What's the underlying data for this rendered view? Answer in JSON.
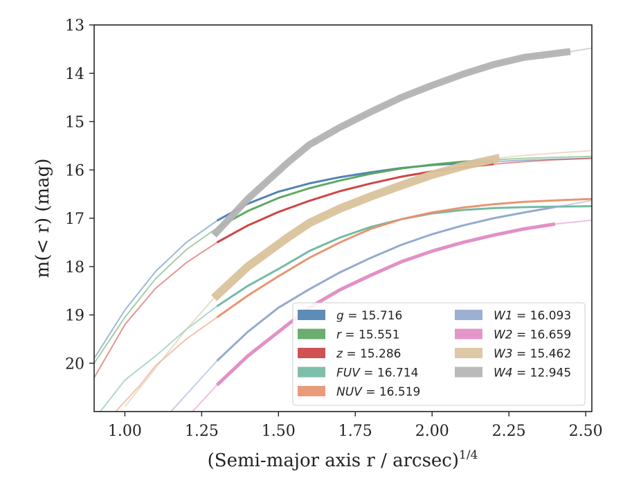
{
  "chart_data": {
    "type": "line",
    "xlabel": "(Semi-major axis r / arcsec)",
    "xlabel_exponent": "1/4",
    "ylabel": "m(< r) (mag)",
    "xlim": [
      0.9,
      2.52
    ],
    "ylim": [
      21.0,
      13.0
    ],
    "y_inverted": true,
    "grid": false,
    "legend_placement": "lower-right",
    "legend_columns": 2,
    "x_ticks": [
      "1.00",
      "1.25",
      "1.50",
      "1.75",
      "2.00",
      "2.25",
      "2.50"
    ],
    "y_ticks": [
      "13",
      "14",
      "15",
      "16",
      "17",
      "18",
      "19",
      "20"
    ],
    "series": [
      {
        "name": "g",
        "value": "15.716",
        "color": "#4c7fb0",
        "x": [
          0.9,
          1.0,
          1.1,
          1.2,
          1.3,
          1.4,
          1.5,
          1.6,
          1.7,
          1.8,
          1.9,
          2.0,
          2.1,
          2.2,
          2.3,
          2.4,
          2.52
        ],
        "y": [
          19.9,
          18.9,
          18.1,
          17.5,
          17.05,
          16.7,
          16.45,
          16.28,
          16.15,
          16.05,
          15.96,
          15.9,
          15.86,
          15.83,
          15.8,
          15.78,
          15.76
        ],
        "bold_range": [
          1.29,
          2.28
        ]
      },
      {
        "name": "r",
        "value": "15.551",
        "color": "#5ba55e",
        "x": [
          0.9,
          1.0,
          1.1,
          1.2,
          1.3,
          1.4,
          1.5,
          1.6,
          1.7,
          1.8,
          1.9,
          2.0,
          2.1,
          2.2,
          2.3,
          2.4,
          2.52
        ],
        "y": [
          20.0,
          19.05,
          18.25,
          17.65,
          17.2,
          16.85,
          16.58,
          16.38,
          16.22,
          16.08,
          15.97,
          15.89,
          15.83,
          15.79,
          15.76,
          15.74,
          15.72
        ],
        "bold_range": [
          1.29,
          2.28
        ]
      },
      {
        "name": "z",
        "value": "15.286",
        "color": "#cc3f3f",
        "x": [
          0.9,
          1.0,
          1.1,
          1.2,
          1.3,
          1.4,
          1.5,
          1.6,
          1.7,
          1.8,
          1.9,
          2.0,
          2.1,
          2.2,
          2.3,
          2.4,
          2.52
        ],
        "y": [
          20.3,
          19.2,
          18.45,
          17.92,
          17.5,
          17.15,
          16.87,
          16.64,
          16.44,
          16.28,
          16.14,
          16.03,
          15.95,
          15.88,
          15.83,
          15.79,
          15.76
        ],
        "bold_range": [
          1.29,
          2.28
        ]
      },
      {
        "name": "FUV",
        "value": "16.714",
        "color": "#6fb8a1",
        "x": [
          0.92,
          1.0,
          1.1,
          1.2,
          1.3,
          1.4,
          1.5,
          1.6,
          1.7,
          1.8,
          1.9,
          2.0,
          2.1,
          2.2,
          2.3,
          2.4,
          2.52
        ],
        "y": [
          21.0,
          20.35,
          19.85,
          19.3,
          18.82,
          18.4,
          18.05,
          17.68,
          17.4,
          17.18,
          17.02,
          16.9,
          16.83,
          16.79,
          16.77,
          16.76,
          16.75
        ],
        "bold_range": [
          1.29,
          2.52
        ]
      },
      {
        "name": "NUV",
        "value": "16.519",
        "color": "#e8916b",
        "x": [
          0.97,
          1.05,
          1.1,
          1.2,
          1.3,
          1.4,
          1.5,
          1.6,
          1.7,
          1.8,
          1.9,
          2.0,
          2.1,
          2.2,
          2.3,
          2.4,
          2.52
        ],
        "y": [
          21.0,
          20.45,
          20.05,
          19.5,
          19.05,
          18.6,
          18.2,
          17.82,
          17.5,
          17.22,
          17.02,
          16.88,
          16.78,
          16.71,
          16.66,
          16.63,
          16.6
        ],
        "bold_range": [
          1.29,
          2.52
        ]
      },
      {
        "name": "W1",
        "value": "16.093",
        "color": "#91a7cc",
        "x": [
          1.15,
          1.2,
          1.3,
          1.4,
          1.5,
          1.6,
          1.7,
          1.8,
          1.9,
          2.0,
          2.1,
          2.2,
          2.3,
          2.4,
          2.52
        ],
        "y": [
          21.0,
          20.65,
          19.95,
          19.35,
          18.85,
          18.47,
          18.12,
          17.82,
          17.55,
          17.33,
          17.15,
          17.0,
          16.88,
          16.77,
          16.63
        ],
        "bold_range": [
          1.29,
          2.45
        ]
      },
      {
        "name": "W2",
        "value": "16.659",
        "color": "#e08cc3",
        "x": [
          1.22,
          1.3,
          1.4,
          1.5,
          1.6,
          1.7,
          1.8,
          1.9,
          2.0,
          2.1,
          2.2,
          2.3,
          2.4,
          2.52
        ],
        "y": [
          21.0,
          20.45,
          19.85,
          19.35,
          18.85,
          18.48,
          18.18,
          17.9,
          17.68,
          17.5,
          17.35,
          17.22,
          17.12,
          17.04
        ],
        "bold_range": [
          1.29,
          2.45
        ]
      },
      {
        "name": "W3",
        "value": "15.462",
        "color": "#d9c39c",
        "x": [
          1.0,
          1.1,
          1.2,
          1.29,
          1.4,
          1.53,
          1.6,
          1.7,
          1.8,
          1.9,
          2.0,
          2.1,
          2.22,
          2.3,
          2.4,
          2.52
        ],
        "y": [
          20.9,
          20.1,
          19.3,
          18.65,
          18.0,
          17.4,
          17.1,
          16.8,
          16.55,
          16.32,
          16.1,
          15.92,
          15.75,
          15.7,
          15.65,
          15.6
        ],
        "bold_range": [
          1.29,
          2.22
        ]
      },
      {
        "name": "W4",
        "value": "12.945",
        "color": "#b3b3b3",
        "x": [
          1.29,
          1.4,
          1.53,
          1.6,
          1.7,
          1.8,
          1.9,
          2.0,
          2.1,
          2.2,
          2.3,
          2.45,
          2.52
        ],
        "y": [
          17.35,
          16.6,
          15.85,
          15.48,
          15.12,
          14.8,
          14.5,
          14.25,
          14.02,
          13.82,
          13.67,
          13.55,
          13.48
        ],
        "bold_range": [
          1.29,
          2.45
        ]
      }
    ]
  }
}
